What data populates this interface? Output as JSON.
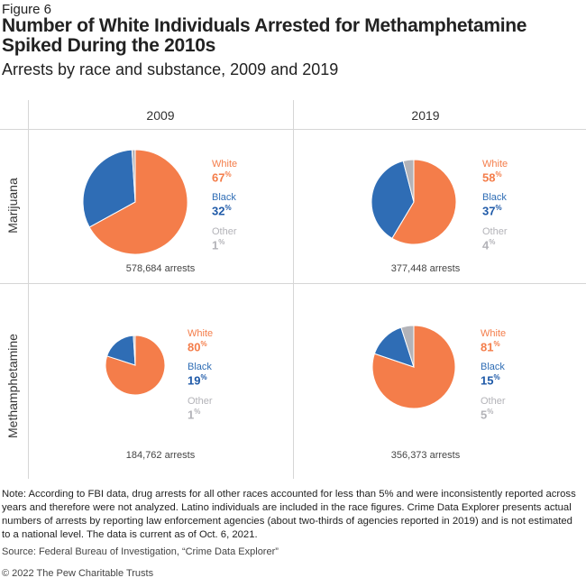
{
  "figure_label": "Figure 6",
  "title": "Number of White Individuals Arrested for Methamphetamine Spiked During the 2010s",
  "subtitle": "Arrests by race and substance, 2009 and 2019",
  "colors": {
    "White": "#f47d4a",
    "Black": "#2f6db5",
    "Other": "#b3b3b8"
  },
  "chart_data": {
    "type": "pie",
    "columns": [
      "2009",
      "2019"
    ],
    "rows": [
      "Marijuana",
      "Methamphetamine"
    ],
    "panels": [
      {
        "substance": "Marijuana",
        "year": "2009",
        "total_label": "578,684 arrests",
        "total": 578684,
        "slices": [
          {
            "name": "White",
            "value": 67,
            "label": "67"
          },
          {
            "name": "Black",
            "value": 32,
            "label": "32"
          },
          {
            "name": "Other",
            "value": 1,
            "label": "1"
          }
        ]
      },
      {
        "substance": "Marijuana",
        "year": "2019",
        "total_label": "377,448 arrests",
        "total": 377448,
        "slices": [
          {
            "name": "White",
            "value": 58,
            "label": "58"
          },
          {
            "name": "Black",
            "value": 37,
            "label": "37"
          },
          {
            "name": "Other",
            "value": 4,
            "label": "4"
          }
        ]
      },
      {
        "substance": "Methamphetamine",
        "year": "2009",
        "total_label": "184,762 arrests",
        "total": 184762,
        "slices": [
          {
            "name": "White",
            "value": 80,
            "label": "80"
          },
          {
            "name": "Black",
            "value": 19,
            "label": "19"
          },
          {
            "name": "Other",
            "value": 1,
            "label": "1"
          }
        ]
      },
      {
        "substance": "Methamphetamine",
        "year": "2019",
        "total_label": "356,373 arrests",
        "total": 356373,
        "slices": [
          {
            "name": "White",
            "value": 81,
            "label": "81"
          },
          {
            "name": "Black",
            "value": 15,
            "label": "15"
          },
          {
            "name": "Other",
            "value": 5,
            "label": "5"
          }
        ]
      }
    ],
    "unit": "%"
  },
  "note": "Note: According to FBI data, drug arrests for all other races accounted for less than 5% and were inconsistently reported across years and therefore were not analyzed. Latino individuals are included in the race figures. Crime Data Explorer presents actual numbers of arrests by reporting law enforcement agencies (about two-thirds of agencies reported in 2019) and is not estimated to a national level. The data is current as of Oct. 6, 2021.",
  "source": "Source: Federal Bureau of Investigation, “Crime Data Explorer”",
  "copyright": "© 2022 The Pew Charitable Trusts"
}
